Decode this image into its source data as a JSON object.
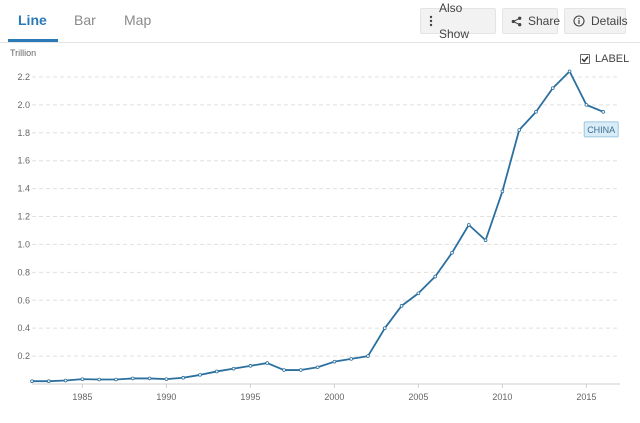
{
  "tabs": [
    {
      "label": "Line",
      "active": true
    },
    {
      "label": "Bar",
      "active": false
    },
    {
      "label": "Map",
      "active": false
    }
  ],
  "toolbar": {
    "also_show": {
      "label": "Also Show",
      "icon": "vertical-ellipsis-icon"
    },
    "share": {
      "label": "Share",
      "icon": "share-icon"
    },
    "details": {
      "label": "Details",
      "icon": "info-circle-icon"
    }
  },
  "label_toggle": {
    "label": "LABEL",
    "checked": true
  },
  "colors": {
    "accent": "#2b7ab8",
    "line": "#2b6f9e",
    "grid": "#e0e0e0",
    "tag_bg": "#d9ecf7"
  },
  "chart_data": {
    "type": "line",
    "ylabel": "Trillion",
    "xlim": [
      1982,
      2017
    ],
    "ylim": [
      0,
      2.3
    ],
    "y_ticks": [
      0.2,
      0.4,
      0.6,
      0.8,
      1.0,
      1.2,
      1.4,
      1.6,
      1.8,
      2.0,
      2.2
    ],
    "y_tick_labels": [
      "0.2",
      "0.4",
      "0.6",
      "0.8",
      "1.0",
      "1.2",
      "1.4",
      "1.6",
      "1.8",
      "2.0",
      "2.2"
    ],
    "x_ticks": [
      1985,
      1990,
      1995,
      2000,
      2005,
      2010,
      2015
    ],
    "x_tick_labels": [
      "1985",
      "1990",
      "1995",
      "2000",
      "2005",
      "2010",
      "2015"
    ],
    "grid": true,
    "series": [
      {
        "name": "CHINA",
        "x": [
          1982,
          1983,
          1984,
          1985,
          1986,
          1987,
          1988,
          1989,
          1990,
          1991,
          1992,
          1993,
          1994,
          1995,
          1996,
          1997,
          1998,
          1999,
          2000,
          2001,
          2002,
          2003,
          2004,
          2005,
          2006,
          2007,
          2008,
          2009,
          2010,
          2011,
          2012,
          2013,
          2014,
          2015,
          2016
        ],
        "y": [
          0.02,
          0.02,
          0.025,
          0.035,
          0.032,
          0.032,
          0.04,
          0.04,
          0.035,
          0.045,
          0.065,
          0.09,
          0.11,
          0.13,
          0.15,
          0.1,
          0.1,
          0.12,
          0.16,
          0.18,
          0.2,
          0.4,
          0.56,
          0.65,
          0.77,
          0.94,
          1.14,
          1.03,
          1.38,
          1.82,
          1.95,
          2.12,
          2.24,
          2.0,
          1.95
        ]
      }
    ]
  }
}
